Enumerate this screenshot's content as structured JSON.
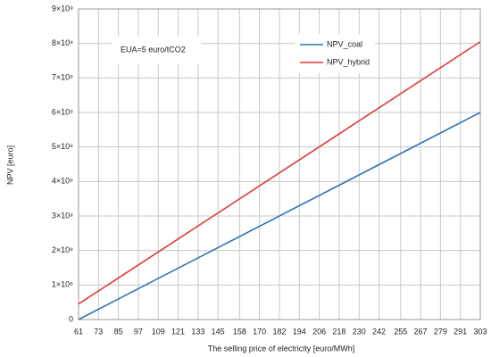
{
  "chart_data": {
    "type": "line",
    "x_label": "The selling price of electricity [euro/MWh]",
    "y_label": "NPV [euro]",
    "annotation": "EUA=5 euro/tCO2",
    "x": [
      61,
      303
    ],
    "series": [
      {
        "name": "NPV_coal",
        "color": "#2e75b6",
        "values": [
          0,
          6000000000
        ]
      },
      {
        "name": "NPV_hybrid",
        "color": "#e03c3c",
        "values": [
          450000000,
          8050000000
        ]
      }
    ],
    "xlim": [
      61,
      303
    ],
    "xticks": [
      61,
      73,
      85,
      97,
      109,
      121,
      133,
      145,
      158,
      170,
      182,
      194,
      206,
      218,
      230,
      242,
      255,
      267,
      279,
      291,
      303
    ],
    "ylim": [
      0,
      9000000000
    ],
    "yticks": [
      0,
      {
        "value": 1000000000,
        "label": "1×10⁹"
      },
      {
        "value": 2000000000,
        "label": "2×10⁹"
      },
      {
        "value": 3000000000,
        "label": "3×10⁹"
      },
      {
        "value": 4000000000,
        "label": "4×10⁹"
      },
      {
        "value": 5000000000,
        "label": "5×10⁹"
      },
      {
        "value": 6000000000,
        "label": "6×10⁹"
      },
      {
        "value": 7000000000,
        "label": "7×10⁹"
      },
      {
        "value": 8000000000,
        "label": "8×10⁹"
      },
      {
        "value": 9000000000,
        "label": "9×10⁹"
      }
    ],
    "grid": true
  }
}
